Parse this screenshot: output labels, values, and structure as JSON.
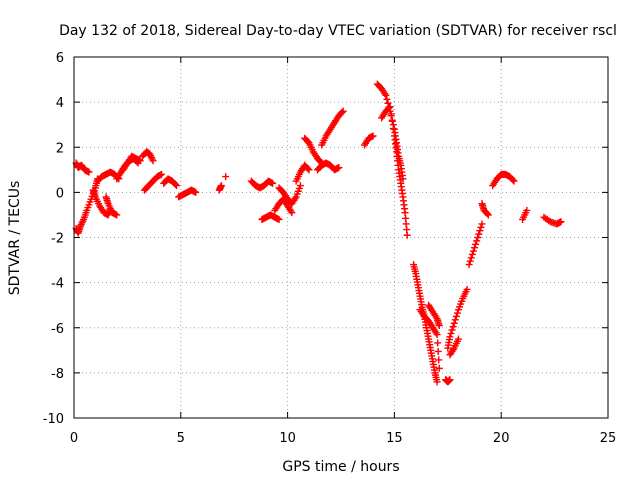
{
  "chart_data": {
    "type": "scatter",
    "title": "Day 132 of 2018, Sidereal Day-to-day VTEC variation (SDTVAR) for receiver rscl",
    "xlabel": "GPS time / hours",
    "ylabel": "SDTVAR / TECUs",
    "xlim": [
      0,
      25
    ],
    "ylim": [
      -10,
      6
    ],
    "xticks": [
      "0",
      "5",
      "10",
      "15",
      "20",
      "25"
    ],
    "yticks": [
      "-10",
      "-8",
      "-6",
      "-4",
      "-2",
      "0",
      "2",
      "4",
      "6"
    ],
    "grid": true,
    "marker": "+",
    "color": "#ff0000",
    "segments": [
      {
        "x": [
          0.1,
          0.2,
          0.35,
          0.5,
          0.7
        ],
        "y": [
          1.3,
          1.1,
          1.2,
          1.0,
          0.9
        ]
      },
      {
        "x": [
          0.1,
          0.2,
          0.3,
          0.45,
          0.6,
          0.8,
          1.0,
          1.1
        ],
        "y": [
          -1.6,
          -1.8,
          -1.5,
          -1.2,
          -0.8,
          -0.3,
          0.2,
          0.6
        ]
      },
      {
        "x": [
          0.9,
          1.0,
          1.2,
          1.4,
          1.6,
          1.7
        ],
        "y": [
          0.1,
          -0.2,
          -0.6,
          -0.9,
          -1.0,
          -0.7
        ]
      },
      {
        "x": [
          1.1,
          1.3,
          1.5,
          1.7,
          1.9,
          2.1
        ],
        "y": [
          0.5,
          0.7,
          0.8,
          0.9,
          0.8,
          0.6
        ]
      },
      {
        "x": [
          1.5,
          1.6,
          1.8,
          2.0
        ],
        "y": [
          -0.2,
          -0.5,
          -0.9,
          -1.0
        ]
      },
      {
        "x": [
          2.0,
          2.2,
          2.4,
          2.6,
          2.8,
          3.0
        ],
        "y": [
          0.6,
          0.9,
          1.2,
          1.4,
          1.5,
          1.3
        ]
      },
      {
        "x": [
          2.3,
          2.5,
          2.7,
          2.9,
          3.1
        ],
        "y": [
          1.0,
          1.3,
          1.6,
          1.5,
          1.4
        ]
      },
      {
        "x": [
          3.2,
          3.4,
          3.55,
          3.7
        ],
        "y": [
          1.6,
          1.8,
          1.7,
          1.4
        ]
      },
      {
        "x": [
          3.3,
          3.5,
          3.7,
          3.9,
          4.1
        ],
        "y": [
          0.1,
          0.3,
          0.5,
          0.7,
          0.8
        ]
      },
      {
        "x": [
          4.2,
          4.4,
          4.6,
          4.8
        ],
        "y": [
          0.4,
          0.6,
          0.5,
          0.3
        ]
      },
      {
        "x": [
          4.9,
          5.1,
          5.3,
          5.5,
          5.7
        ],
        "y": [
          -0.2,
          -0.1,
          0.0,
          0.1,
          0.0
        ]
      },
      {
        "x": [
          6.8,
          6.9
        ],
        "y": [
          0.1,
          0.3
        ]
      },
      {
        "x": [
          7.1
        ],
        "y": [
          0.7
        ]
      },
      {
        "x": [
          8.3,
          8.5,
          8.7,
          8.9,
          9.1,
          9.3
        ],
        "y": [
          0.5,
          0.3,
          0.2,
          0.3,
          0.5,
          0.4
        ]
      },
      {
        "x": [
          8.8,
          9.0,
          9.2,
          9.4,
          9.6
        ],
        "y": [
          -1.2,
          -1.1,
          -1.0,
          -1.1,
          -1.2
        ]
      },
      {
        "x": [
          9.4,
          9.6,
          9.8,
          10.0,
          10.2
        ],
        "y": [
          -0.8,
          -0.5,
          -0.3,
          -0.6,
          -0.9
        ]
      },
      {
        "x": [
          9.6,
          9.8,
          10.0,
          10.2,
          10.4,
          10.6
        ],
        "y": [
          0.2,
          0.0,
          -0.3,
          -0.5,
          -0.2,
          0.3
        ]
      },
      {
        "x": [
          10.4,
          10.6,
          10.8,
          11.0
        ],
        "y": [
          0.5,
          0.9,
          1.2,
          1.0
        ]
      },
      {
        "x": [
          10.8,
          11.0,
          11.2,
          11.4,
          11.6
        ],
        "y": [
          2.4,
          2.2,
          1.8,
          1.5,
          1.3
        ]
      },
      {
        "x": [
          11.4,
          11.6,
          11.8,
          12.0,
          12.2,
          12.4
        ],
        "y": [
          1.0,
          1.2,
          1.3,
          1.2,
          1.0,
          1.1
        ]
      },
      {
        "x": [
          11.6,
          11.8,
          12.0,
          12.2,
          12.4,
          12.6
        ],
        "y": [
          2.1,
          2.5,
          2.8,
          3.1,
          3.4,
          3.6
        ]
      },
      {
        "x": [
          13.6,
          13.8,
          14.0
        ],
        "y": [
          2.1,
          2.4,
          2.5
        ]
      },
      {
        "x": [
          14.2,
          14.4,
          14.6,
          14.8,
          15.0,
          15.1,
          15.2,
          15.3,
          15.4
        ],
        "y": [
          4.8,
          4.6,
          4.3,
          3.6,
          2.8,
          2.2,
          1.6,
          1.2,
          0.6
        ]
      },
      {
        "x": [
          14.4,
          14.6,
          14.8,
          15.0,
          15.1,
          15.2,
          15.3,
          15.4,
          15.5,
          15.6
        ],
        "y": [
          3.3,
          3.6,
          3.8,
          2.5,
          1.8,
          1.0,
          0.4,
          -0.2,
          -0.9,
          -1.9
        ]
      },
      {
        "x": [
          15.9,
          16.0,
          16.1,
          16.2,
          16.3,
          16.4,
          16.5,
          16.6,
          16.7,
          16.8,
          16.9,
          17.0
        ],
        "y": [
          -3.2,
          -3.6,
          -4.1,
          -4.6,
          -5.1,
          -5.5,
          -6.0,
          -6.5,
          -7.0,
          -7.5,
          -8.0,
          -8.4
        ]
      },
      {
        "x": [
          16.2,
          16.4,
          16.6,
          16.8,
          17.0,
          17.1
        ],
        "y": [
          -5.2,
          -5.5,
          -5.7,
          -6.0,
          -6.3,
          -7.8
        ]
      },
      {
        "x": [
          16.6,
          16.8,
          17.0,
          17.1
        ],
        "y": [
          -5.0,
          -5.3,
          -5.6,
          -5.9
        ]
      },
      {
        "x": [
          17.4,
          17.5,
          17.6
        ],
        "y": [
          -8.3,
          -8.4,
          -8.3
        ]
      },
      {
        "x": [
          17.5,
          17.6,
          17.8,
          18.0,
          18.2,
          18.4
        ],
        "y": [
          -6.9,
          -6.4,
          -5.8,
          -5.2,
          -4.7,
          -4.3
        ]
      },
      {
        "x": [
          17.6,
          17.8,
          18.0
        ],
        "y": [
          -7.2,
          -6.9,
          -6.5
        ]
      },
      {
        "x": [
          18.5,
          18.7,
          18.9,
          19.1
        ],
        "y": [
          -3.2,
          -2.6,
          -2.0,
          -1.4
        ]
      },
      {
        "x": [
          19.1,
          19.2,
          19.4
        ],
        "y": [
          -0.5,
          -0.8,
          -1.0
        ]
      },
      {
        "x": [
          19.6,
          19.8,
          20.0,
          20.2,
          20.4,
          20.6
        ],
        "y": [
          0.3,
          0.6,
          0.8,
          0.8,
          0.7,
          0.5
        ]
      },
      {
        "x": [
          21.0,
          21.2
        ],
        "y": [
          -1.2,
          -0.8
        ]
      },
      {
        "x": [
          22.0,
          22.3,
          22.6,
          22.8
        ],
        "y": [
          -1.1,
          -1.3,
          -1.4,
          -1.3
        ]
      }
    ]
  }
}
